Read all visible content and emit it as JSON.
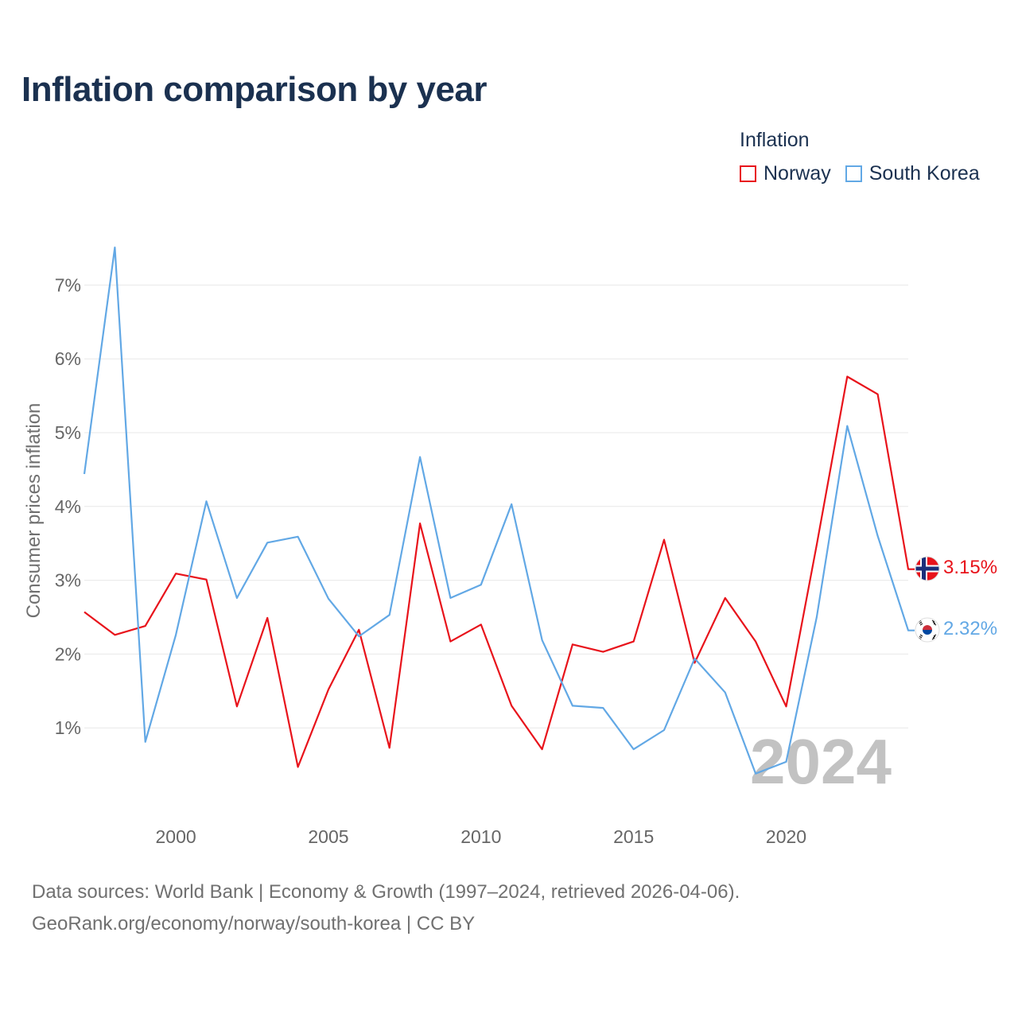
{
  "title": "Inflation comparison by year",
  "legend": {
    "title": "Inflation",
    "items": [
      {
        "label": "Norway",
        "color": "#e8131b"
      },
      {
        "label": "South Korea",
        "color": "#62a8e5"
      }
    ]
  },
  "footer": {
    "line1": "Data sources: World Bank | Economy & Growth (1997–2024, retrieved 2026-04-06).",
    "line2": "GeoRank.org/economy/norway/south-korea | CC BY"
  },
  "chart_data": {
    "type": "line",
    "title": "Inflation comparison by year",
    "xlabel": "",
    "ylabel": "Consumer prices inflation",
    "x": [
      1997,
      1998,
      1999,
      2000,
      2001,
      2002,
      2003,
      2004,
      2005,
      2006,
      2007,
      2008,
      2009,
      2010,
      2011,
      2012,
      2013,
      2014,
      2015,
      2016,
      2017,
      2018,
      2019,
      2020,
      2021,
      2022,
      2023,
      2024
    ],
    "xlim": [
      1997,
      2024
    ],
    "ylim": [
      0,
      7.7
    ],
    "x_ticks": [
      2000,
      2005,
      2010,
      2015,
      2020
    ],
    "x_tick_labels": [
      "2000",
      "2005",
      "2010",
      "2015",
      "2020"
    ],
    "y_ticks": [
      1,
      2,
      3,
      4,
      5,
      6,
      7
    ],
    "y_tick_labels": [
      "1%",
      "2%",
      "3%",
      "4%",
      "5%",
      "6%",
      "7%"
    ],
    "grid": true,
    "legend_position": "top-right",
    "watermark_year": "2024",
    "series": [
      {
        "name": "Norway",
        "color": "#e8131b",
        "end_label": "3.15%",
        "flag": "norway-flag-icon",
        "values": [
          2.57,
          2.26,
          2.38,
          3.09,
          3.01,
          1.29,
          2.49,
          0.47,
          1.52,
          2.33,
          0.73,
          3.77,
          2.17,
          2.4,
          1.3,
          0.71,
          2.13,
          2.03,
          2.17,
          3.55,
          1.88,
          2.76,
          2.17,
          1.29,
          3.48,
          5.76,
          5.52,
          3.15
        ]
      },
      {
        "name": "South Korea",
        "color": "#62a8e5",
        "end_label": "2.32%",
        "flag": "south-korea-flag-icon",
        "values": [
          4.44,
          7.51,
          0.81,
          2.26,
          4.07,
          2.76,
          3.51,
          3.59,
          2.75,
          2.24,
          2.53,
          4.67,
          2.76,
          2.94,
          4.03,
          2.19,
          1.3,
          1.27,
          0.71,
          0.97,
          1.94,
          1.48,
          0.38,
          0.54,
          2.5,
          5.09,
          3.6,
          2.32
        ]
      }
    ]
  }
}
